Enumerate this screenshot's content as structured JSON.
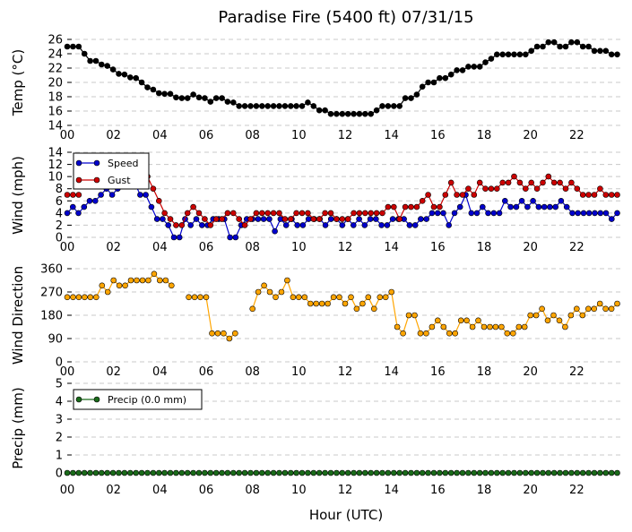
{
  "figure": {
    "title": "Paradise Fire (5400 ft) 07/31/15",
    "xlabel": "Hour (UTC)"
  },
  "chart_data": [
    {
      "type": "line",
      "name": "temperature",
      "ylabel": "Temp (°C)",
      "xlim": [
        0,
        24
      ],
      "ylim": [
        14,
        26
      ],
      "yticks": [
        14,
        16,
        18,
        20,
        22,
        24,
        26
      ],
      "xticks": [
        "00",
        "02",
        "04",
        "06",
        "08",
        "10",
        "12",
        "14",
        "16",
        "18",
        "20",
        "22"
      ],
      "series": [
        {
          "color": "#000000",
          "values": [
            25.0,
            25.0,
            25.0,
            24.0,
            23.0,
            23.0,
            22.5,
            22.3,
            21.8,
            21.2,
            21.1,
            20.7,
            20.6,
            20.0,
            19.3,
            19.0,
            18.5,
            18.4,
            18.4,
            17.9,
            17.8,
            17.8,
            18.3,
            17.9,
            17.8,
            17.3,
            17.8,
            17.8,
            17.3,
            17.2,
            16.7,
            16.7,
            16.7,
            16.7,
            16.7,
            16.7,
            16.7,
            16.7,
            16.7,
            16.7,
            16.7,
            16.7,
            17.2,
            16.7,
            16.1,
            16.1,
            15.6,
            15.6,
            15.6,
            15.6,
            15.6,
            15.6,
            15.6,
            15.6,
            16.1,
            16.7,
            16.7,
            16.7,
            16.7,
            17.8,
            17.8,
            18.3,
            19.4,
            20.0,
            20.0,
            20.6,
            20.6,
            21.1,
            21.7,
            21.7,
            22.2,
            22.2,
            22.2,
            22.8,
            23.3,
            23.9,
            23.9,
            23.9,
            23.9,
            23.9,
            23.9,
            24.4,
            25.0,
            25.0,
            25.6,
            25.6,
            25.0,
            25.0,
            25.6,
            25.6,
            25.0,
            25.0,
            24.4,
            24.4,
            24.4,
            23.9,
            23.9
          ]
        }
      ]
    },
    {
      "type": "line",
      "name": "wind",
      "ylabel": "Wind (mph)",
      "xlim": [
        0,
        24
      ],
      "ylim": [
        0,
        14
      ],
      "yticks": [
        0,
        2,
        4,
        6,
        8,
        10,
        12,
        14
      ],
      "xticks": [
        "00",
        "02",
        "04",
        "06",
        "08",
        "10",
        "12",
        "14",
        "16",
        "18",
        "20",
        "22"
      ],
      "legend_position": "top-left",
      "series": [
        {
          "name": "Speed",
          "color": "#0000cc",
          "values": [
            4,
            5,
            4,
            5,
            6,
            6,
            7,
            8,
            7,
            8,
            9,
            10,
            9,
            7,
            7,
            5,
            3,
            3,
            2,
            0,
            0,
            3,
            2,
            3,
            2,
            2,
            3,
            3,
            3,
            0,
            0,
            2,
            3,
            3,
            3,
            3,
            3,
            1,
            3,
            2,
            3,
            2,
            2,
            3,
            3,
            3,
            2,
            3,
            3,
            2,
            3,
            2,
            3,
            2,
            3,
            3,
            2,
            2,
            3,
            3,
            3,
            2,
            2,
            3,
            3,
            4,
            4,
            4,
            2,
            4,
            5,
            7,
            4,
            4,
            5,
            4,
            4,
            4,
            6,
            5,
            5,
            6,
            5,
            6,
            5,
            5,
            5,
            5,
            6,
            5,
            4,
            4,
            4,
            4,
            4,
            4,
            4,
            3,
            4
          ]
        },
        {
          "name": "Gust",
          "color": "#cc0000",
          "values": [
            7,
            7,
            7,
            null,
            null,
            null,
            null,
            null,
            null,
            null,
            null,
            null,
            null,
            null,
            10,
            8,
            6,
            4,
            3,
            2,
            2,
            4,
            5,
            4,
            3,
            2,
            3,
            3,
            4,
            4,
            3,
            2,
            3,
            4,
            4,
            4,
            4,
            4,
            3,
            3,
            4,
            4,
            4,
            3,
            3,
            4,
            4,
            3,
            3,
            3,
            4,
            4,
            4,
            4,
            4,
            4,
            5,
            5,
            3,
            5,
            5,
            5,
            6,
            7,
            5,
            5,
            7,
            9,
            7,
            7,
            8,
            7,
            9,
            8,
            8,
            8,
            9,
            9,
            10,
            9,
            8,
            9,
            8,
            9,
            10,
            9,
            9,
            8,
            9,
            8,
            7,
            7,
            7,
            8,
            7,
            7,
            7
          ]
        }
      ]
    },
    {
      "type": "scatter",
      "name": "wind-direction",
      "ylabel": "Wind Direction",
      "xlim": [
        0,
        24
      ],
      "ylim": [
        0,
        360
      ],
      "yticks": [
        0,
        90,
        180,
        270,
        360
      ],
      "xticks": [
        "00",
        "02",
        "04",
        "06",
        "08",
        "10",
        "12",
        "14",
        "16",
        "18",
        "20",
        "22"
      ],
      "series": [
        {
          "color": "#ffa500",
          "values": [
            250,
            250,
            250,
            250,
            250,
            250,
            295,
            270,
            315,
            295,
            295,
            315,
            315,
            315,
            315,
            340,
            315,
            315,
            295,
            null,
            null,
            250,
            250,
            250,
            250,
            110,
            110,
            110,
            90,
            110,
            null,
            null,
            205,
            270,
            295,
            270,
            250,
            270,
            315,
            250,
            250,
            250,
            225,
            225,
            225,
            225,
            250,
            250,
            225,
            250,
            205,
            225,
            250,
            205,
            250,
            250,
            270,
            135,
            110,
            180,
            180,
            110,
            110,
            135,
            160,
            135,
            110,
            110,
            160,
            160,
            135,
            160,
            135,
            135,
            135,
            135,
            110,
            110,
            135,
            135,
            180,
            180,
            205,
            160,
            180,
            160,
            135,
            180,
            205,
            180,
            205,
            205,
            225,
            205,
            205,
            225
          ]
        }
      ]
    },
    {
      "type": "line",
      "name": "precipitation",
      "ylabel": "Precip (mm)",
      "xlim": [
        0,
        24
      ],
      "ylim": [
        0,
        5
      ],
      "yticks": [
        0,
        1,
        2,
        3,
        4,
        5
      ],
      "xticks": [
        "00",
        "02",
        "04",
        "06",
        "08",
        "10",
        "12",
        "14",
        "16",
        "18",
        "20",
        "22"
      ],
      "legend_position": "top-left",
      "series": [
        {
          "name": "Precip (0.0 mm)",
          "color": "#1a6b1a",
          "values": [
            0,
            0,
            0,
            0,
            0,
            0,
            0,
            0,
            0,
            0,
            0,
            0,
            0,
            0,
            0,
            0,
            0,
            0,
            0,
            0,
            0,
            0,
            0,
            0,
            0,
            0,
            0,
            0,
            0,
            0,
            0,
            0,
            0,
            0,
            0,
            0,
            0,
            0,
            0,
            0,
            0,
            0,
            0,
            0,
            0,
            0,
            0,
            0,
            0,
            0,
            0,
            0,
            0,
            0,
            0,
            0,
            0,
            0,
            0,
            0,
            0,
            0,
            0,
            0,
            0,
            0,
            0,
            0,
            0,
            0,
            0,
            0,
            0,
            0,
            0,
            0,
            0,
            0,
            0,
            0,
            0,
            0,
            0,
            0,
            0,
            0,
            0,
            0,
            0,
            0,
            0,
            0,
            0,
            0,
            0,
            0,
            0
          ]
        }
      ]
    }
  ]
}
